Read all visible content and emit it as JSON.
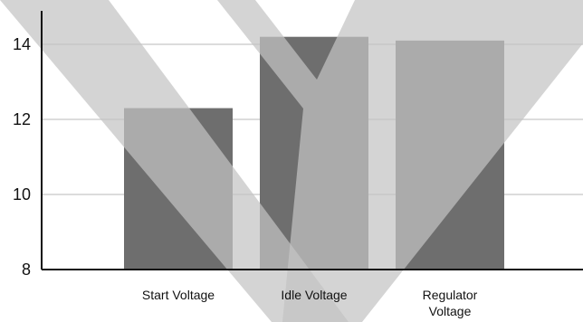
{
  "chart_data": {
    "type": "bar",
    "title": "",
    "xlabel": "",
    "ylabel": "",
    "categories": [
      "Start Voltage",
      "Idle Voltage",
      "Regulator Voltage"
    ],
    "category_lines": [
      [
        "Start Voltage"
      ],
      [
        "Idle Voltage"
      ],
      [
        "Regulator",
        "Voltage"
      ]
    ],
    "values": [
      12.3,
      14.2,
      14.1
    ],
    "ylim": [
      8,
      15.2
    ],
    "yticks": [
      8,
      10,
      12,
      14
    ],
    "grid": true,
    "colors": {
      "bar": "#6e6e6e",
      "grid": "#d0d0d0",
      "axis": "#111111",
      "overlay": "#c4c4c4"
    }
  }
}
